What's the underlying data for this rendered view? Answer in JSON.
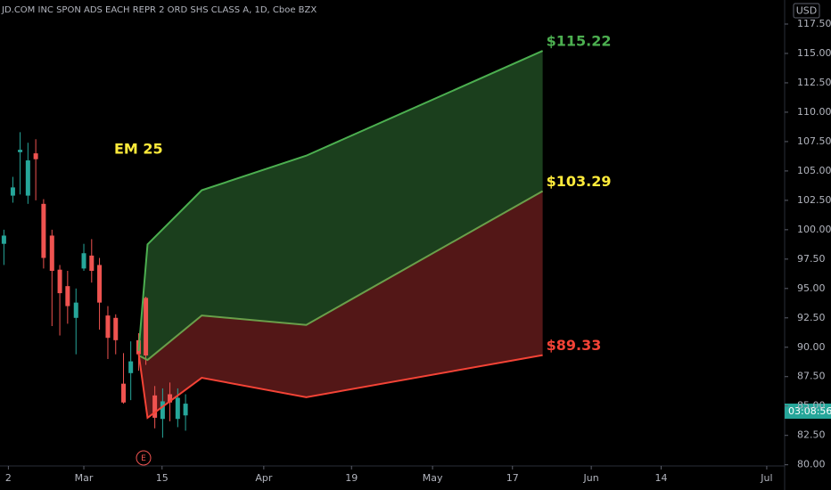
{
  "chart_data": {
    "type": "candlestick",
    "title": "JD.COM INC SPON ADS EACH REPR 2 ORD SHS CLASS A, 1D, Cboe BZX",
    "currency": "USD",
    "up_color": "#26a69a",
    "down_color": "#ef5350",
    "xlim": [
      -1.5,
      138.9
    ],
    "xticks": [
      {
        "value": 0,
        "label": "2"
      },
      {
        "value": 13.5,
        "label": "Mar"
      },
      {
        "value": 27.5,
        "label": "15"
      },
      {
        "value": 45.7,
        "label": "Apr"
      },
      {
        "value": 61.4,
        "label": "19"
      },
      {
        "value": 75.9,
        "label": "May"
      },
      {
        "value": 90.2,
        "label": "17"
      },
      {
        "value": 104.3,
        "label": "Jun"
      },
      {
        "value": 116.8,
        "label": "14"
      },
      {
        "value": 135.7,
        "label": "Jul"
      }
    ],
    "ylim": [
      79.9,
      117.5
    ],
    "yticks": [
      {
        "value": 80,
        "label": "80.00"
      },
      {
        "value": 82.5,
        "label": "82.50"
      },
      {
        "value": 85,
        "label": "85.00"
      },
      {
        "value": 87.5,
        "label": "87.50"
      },
      {
        "value": 90,
        "label": "90.00"
      },
      {
        "value": 92.5,
        "label": "92.50"
      },
      {
        "value": 95,
        "label": "95.00"
      },
      {
        "value": 97.5,
        "label": "97.50"
      },
      {
        "value": 100,
        "label": "100.00"
      },
      {
        "value": 102.5,
        "label": "102.50"
      },
      {
        "value": 105,
        "label": "105.00"
      },
      {
        "value": 107.5,
        "label": "107.50"
      },
      {
        "value": 110,
        "label": "110.00"
      },
      {
        "value": 112.5,
        "label": "112.50"
      },
      {
        "value": 115,
        "label": "115.00"
      },
      {
        "value": 117.5,
        "label": "117.50"
      }
    ],
    "candles": {
      "x": [
        -0.8,
        0.8,
        2.1,
        3.5,
        4.9,
        6.3,
        7.8,
        9.2,
        10.6,
        12.1,
        13.5,
        14.9,
        16.3,
        17.8,
        19.2,
        20.6,
        21.9,
        23.3,
        24.6,
        26.2,
        27.6,
        28.9,
        30.3,
        31.7
      ],
      "open": [
        98.8,
        102.9,
        106.6,
        102.9,
        106.5,
        102.2,
        99.5,
        96.6,
        95.2,
        92.5,
        96.7,
        97.8,
        97.0,
        92.7,
        92.5,
        86.9,
        87.8,
        90.6,
        94.2,
        85.9,
        83.9,
        86.0,
        83.9,
        84.2
      ],
      "high": [
        100.0,
        104.5,
        108.3,
        107.4,
        107.7,
        102.6,
        100.0,
        97.0,
        96.5,
        95.0,
        98.8,
        99.2,
        97.6,
        93.5,
        92.8,
        89.5,
        90.5,
        91.2,
        94.3,
        86.7,
        86.5,
        87.0,
        86.5,
        86.0
      ],
      "low": [
        97.0,
        102.3,
        103.0,
        102.2,
        102.5,
        96.7,
        91.8,
        91.0,
        92.0,
        89.4,
        96.5,
        95.5,
        91.5,
        89.0,
        89.4,
        85.2,
        85.5,
        88.0,
        88.5,
        83.1,
        82.3,
        83.7,
        83.2,
        82.9
      ],
      "close": [
        99.5,
        103.6,
        106.8,
        105.9,
        106.0,
        97.6,
        96.5,
        94.6,
        93.5,
        93.8,
        98.0,
        96.5,
        93.8,
        90.8,
        90.6,
        85.3,
        88.8,
        89.4,
        89.3,
        84.0,
        85.4,
        85.3,
        85.7,
        85.2
      ]
    },
    "bands": [
      {
        "color": "#4caf50",
        "x": [
          23.3,
          24.9,
          34.6,
          53.3,
          95.6
        ],
        "values": [
          89.68,
          98.75,
          103.36,
          106.3,
          115.22
        ]
      },
      {
        "color": "#6a9f4a",
        "x": [
          23.3,
          24.9,
          34.6,
          53.3,
          95.6
        ],
        "values": [
          89.3,
          88.92,
          92.7,
          91.9,
          103.29
        ]
      },
      {
        "color": "#f44336",
        "x": [
          23.3,
          24.9,
          34.6,
          53.3,
          95.6
        ],
        "values": [
          89.5,
          84.0,
          87.4,
          85.75,
          89.33
        ]
      }
    ],
    "band_fills": [
      "#1e4620",
      "#5c1a1a"
    ],
    "end_labels": [
      {
        "text": "$115.22",
        "color": "#4caf50"
      },
      {
        "text": "$103.29",
        "color": "#ffeb3b"
      },
      {
        "text": "$89.33",
        "color": "#f44336"
      }
    ],
    "annotation": "EM 25",
    "price_tag": "03:08:56",
    "earnings_marker": "E"
  }
}
